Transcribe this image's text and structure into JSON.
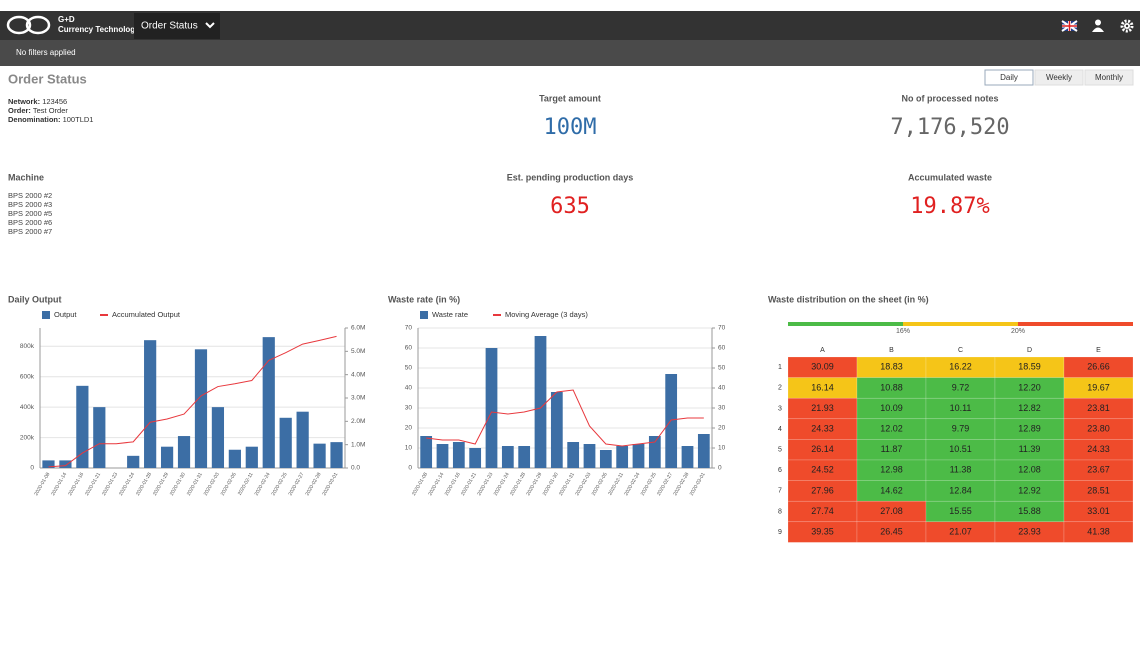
{
  "header": {
    "brand_line1": "G+D",
    "brand_line2": "Currency Technology",
    "menu": "Order Status"
  },
  "filters": "No filters applied",
  "page_title": "Order Status",
  "period_tabs": [
    "Daily",
    "Weekly",
    "Monthly"
  ],
  "order_info": [
    {
      "label": "Network:",
      "value": "123456"
    },
    {
      "label": "Order:",
      "value": "Test Order"
    },
    {
      "label": "Denomination:",
      "value": "100TLD1"
    }
  ],
  "machine": {
    "title": "Machine",
    "items": [
      "BPS 2000 #2",
      "BPS 2000 #3",
      "BPS 2000 #5",
      "BPS 2000 #6",
      "BPS 2000 #7"
    ]
  },
  "kpis": [
    {
      "label": "Target amount",
      "value": "100M",
      "color": "#2f6ca8"
    },
    {
      "label": "No of processed notes",
      "value": "7,176,520",
      "color": "#666666"
    },
    {
      "label": "Est. pending production days",
      "value": "635",
      "color": "#e02020"
    },
    {
      "label": "Accumulated waste",
      "value": "19.87%",
      "color": "#e02020"
    }
  ],
  "chart_data": [
    {
      "type": "bar",
      "title": "Daily Output",
      "categories": [
        "2020-01-08",
        "2020-01-14",
        "2020-01-16",
        "2020-01-21",
        "2020-01-23",
        "2020-01-24",
        "2020-01-28",
        "2020-01-29",
        "2020-01-30",
        "2020-01-31",
        "2020-02-03",
        "2020-02-05",
        "2020-02-11",
        "2020-02-24",
        "2020-02-25",
        "2020-02-27",
        "2020-02-28",
        "2020-03-01"
      ],
      "series": [
        {
          "name": "Output",
          "color": "#3c6ea5",
          "values": [
            50000,
            50000,
            540000,
            400000,
            0,
            80000,
            840000,
            140000,
            210000,
            780000,
            400000,
            120000,
            140000,
            860000,
            330000,
            370000,
            160000,
            170000
          ]
        },
        {
          "name": "Accumulated Output",
          "color": "#e8383d",
          "axis": "y2",
          "values": [
            50000,
            100000,
            640000,
            1040000,
            1040000,
            1120000,
            1960000,
            2100000,
            2310000,
            3090000,
            3490000,
            3610000,
            3750000,
            4610000,
            4940000,
            5310000,
            5470000,
            5640000
          ]
        }
      ],
      "ylim": [
        0,
        920000
      ],
      "yticks": [
        0,
        {
          "value": 200000,
          "label": "200k"
        },
        {
          "value": 400000,
          "label": "400k"
        },
        {
          "value": 600000,
          "label": "600k"
        },
        {
          "value": 800000,
          "label": "800k"
        }
      ],
      "y2lim": [
        0,
        6000000
      ],
      "y2ticks": [
        {
          "value": 0,
          "label": "0.0"
        },
        {
          "value": 1000000,
          "label": "1.0M"
        },
        {
          "value": 2000000,
          "label": "2.0M"
        },
        {
          "value": 3000000,
          "label": "3.0M"
        },
        {
          "value": 4000000,
          "label": "4.0M"
        },
        {
          "value": 5000000,
          "label": "5.0M"
        },
        {
          "value": 6000000,
          "label": "6.0M"
        }
      ],
      "grid": true
    },
    {
      "type": "bar",
      "title": "Waste rate (in %)",
      "categories": [
        "2020-01-08",
        "2020-01-14",
        "2020-01-16",
        "2020-01-21",
        "2020-01-23",
        "2020-01-24",
        "2020-01-28",
        "2020-01-29",
        "2020-01-30",
        "2020-01-31",
        "2020-02-03",
        "2020-02-05",
        "2020-02-11",
        "2020-02-24",
        "2020-02-25",
        "2020-02-27",
        "2020-02-28",
        "2020-03-01"
      ],
      "series": [
        {
          "name": "Waste rate",
          "color": "#3c6ea5",
          "values": [
            16,
            12,
            13,
            10,
            60,
            11,
            11,
            66,
            38,
            13,
            12,
            9,
            11,
            12,
            16,
            47,
            11,
            17
          ]
        },
        {
          "name": "Moving Average (3 days)",
          "color": "#e8383d",
          "axis": "y2",
          "values": [
            15,
            14,
            14,
            12,
            28,
            27,
            28,
            30,
            38,
            39,
            21,
            12,
            11,
            12,
            13,
            24,
            25,
            25
          ]
        }
      ],
      "ylim": [
        0,
        70
      ],
      "yticks": [
        0,
        10,
        20,
        30,
        40,
        50,
        60,
        70
      ],
      "y2lim": [
        0,
        70
      ],
      "y2ticks": [
        0,
        10,
        20,
        30,
        40,
        50,
        60,
        70
      ],
      "grid": true
    }
  ],
  "heatmap": {
    "title": "Waste distribution on the sheet (in %)",
    "thresholds": [
      {
        "value": 16,
        "label": "16%"
      },
      {
        "value": 20,
        "label": "20%"
      }
    ],
    "colors": [
      "#4cbb47",
      "#f5c518",
      "#ef4b2b"
    ],
    "columns": [
      "A",
      "B",
      "C",
      "D",
      "E"
    ],
    "rows": [
      {
        "label": "1",
        "values": [
          "30.09",
          "18.83",
          "16.22",
          "18.59",
          "26.66"
        ]
      },
      {
        "label": "2",
        "values": [
          "16.14",
          "10.88",
          "9.72",
          "12.20",
          "19.67"
        ]
      },
      {
        "label": "3",
        "values": [
          "21.93",
          "10.09",
          "10.11",
          "12.82",
          "23.81"
        ]
      },
      {
        "label": "4",
        "values": [
          "24.33",
          "12.02",
          "9.79",
          "12.89",
          "23.80"
        ]
      },
      {
        "label": "5",
        "values": [
          "26.14",
          "11.87",
          "10.51",
          "11.39",
          "24.33"
        ]
      },
      {
        "label": "6",
        "values": [
          "24.52",
          "12.98",
          "11.38",
          "12.08",
          "23.67"
        ]
      },
      {
        "label": "7",
        "values": [
          "27.96",
          "14.62",
          "12.84",
          "12.92",
          "28.51"
        ]
      },
      {
        "label": "8",
        "values": [
          "27.74",
          "27.08",
          "15.55",
          "15.88",
          "33.01"
        ]
      },
      {
        "label": "9",
        "values": [
          "39.35",
          "26.45",
          "21.07",
          "23.93",
          "41.38"
        ]
      }
    ]
  }
}
